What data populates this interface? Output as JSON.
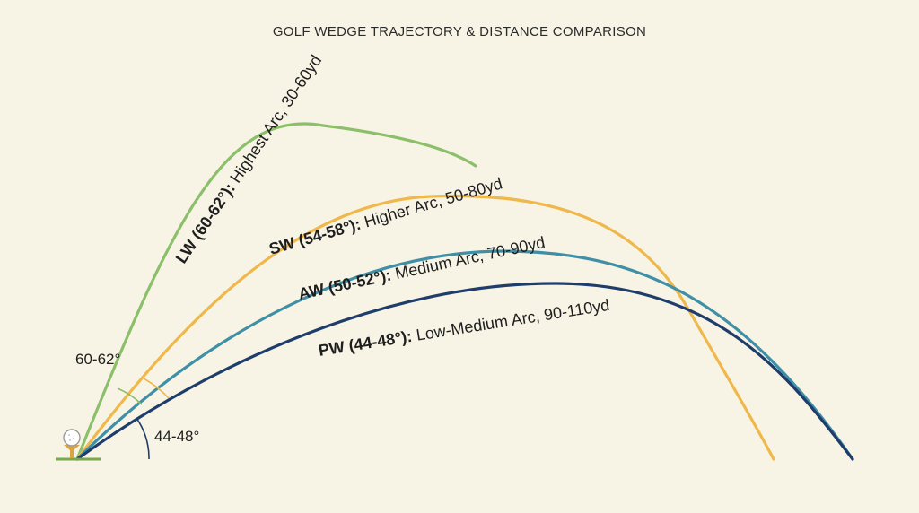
{
  "title": "GOLF WEDGE TRAJECTORY & DISTANCE COMPARISON",
  "trajectories": [
    {
      "id": "lw",
      "code": "LW (60-62°):",
      "description": " Highest Arc, 30-60yd",
      "color": "#8cbf6a"
    },
    {
      "id": "sw",
      "code": "SW (54-58°):",
      "description": " Higher Arc, 50-80yd",
      "color": "#f0b84a"
    },
    {
      "id": "aw",
      "code": "AW (50-52°):",
      "description": " Medium Arc, 70-90yd",
      "color": "#3f8fa6"
    },
    {
      "id": "pw",
      "code": "PW (44-48°):",
      "description": " Low-Medium Arc, 90-110yd",
      "color": "#1f3d6b"
    }
  ],
  "angle_labels": {
    "high": "60-62°",
    "low": "44-48°"
  },
  "colors": {
    "background": "#f7f4e6",
    "ground": "#7aa84a",
    "tee": "#d9a441",
    "ball": "#ffffff"
  }
}
